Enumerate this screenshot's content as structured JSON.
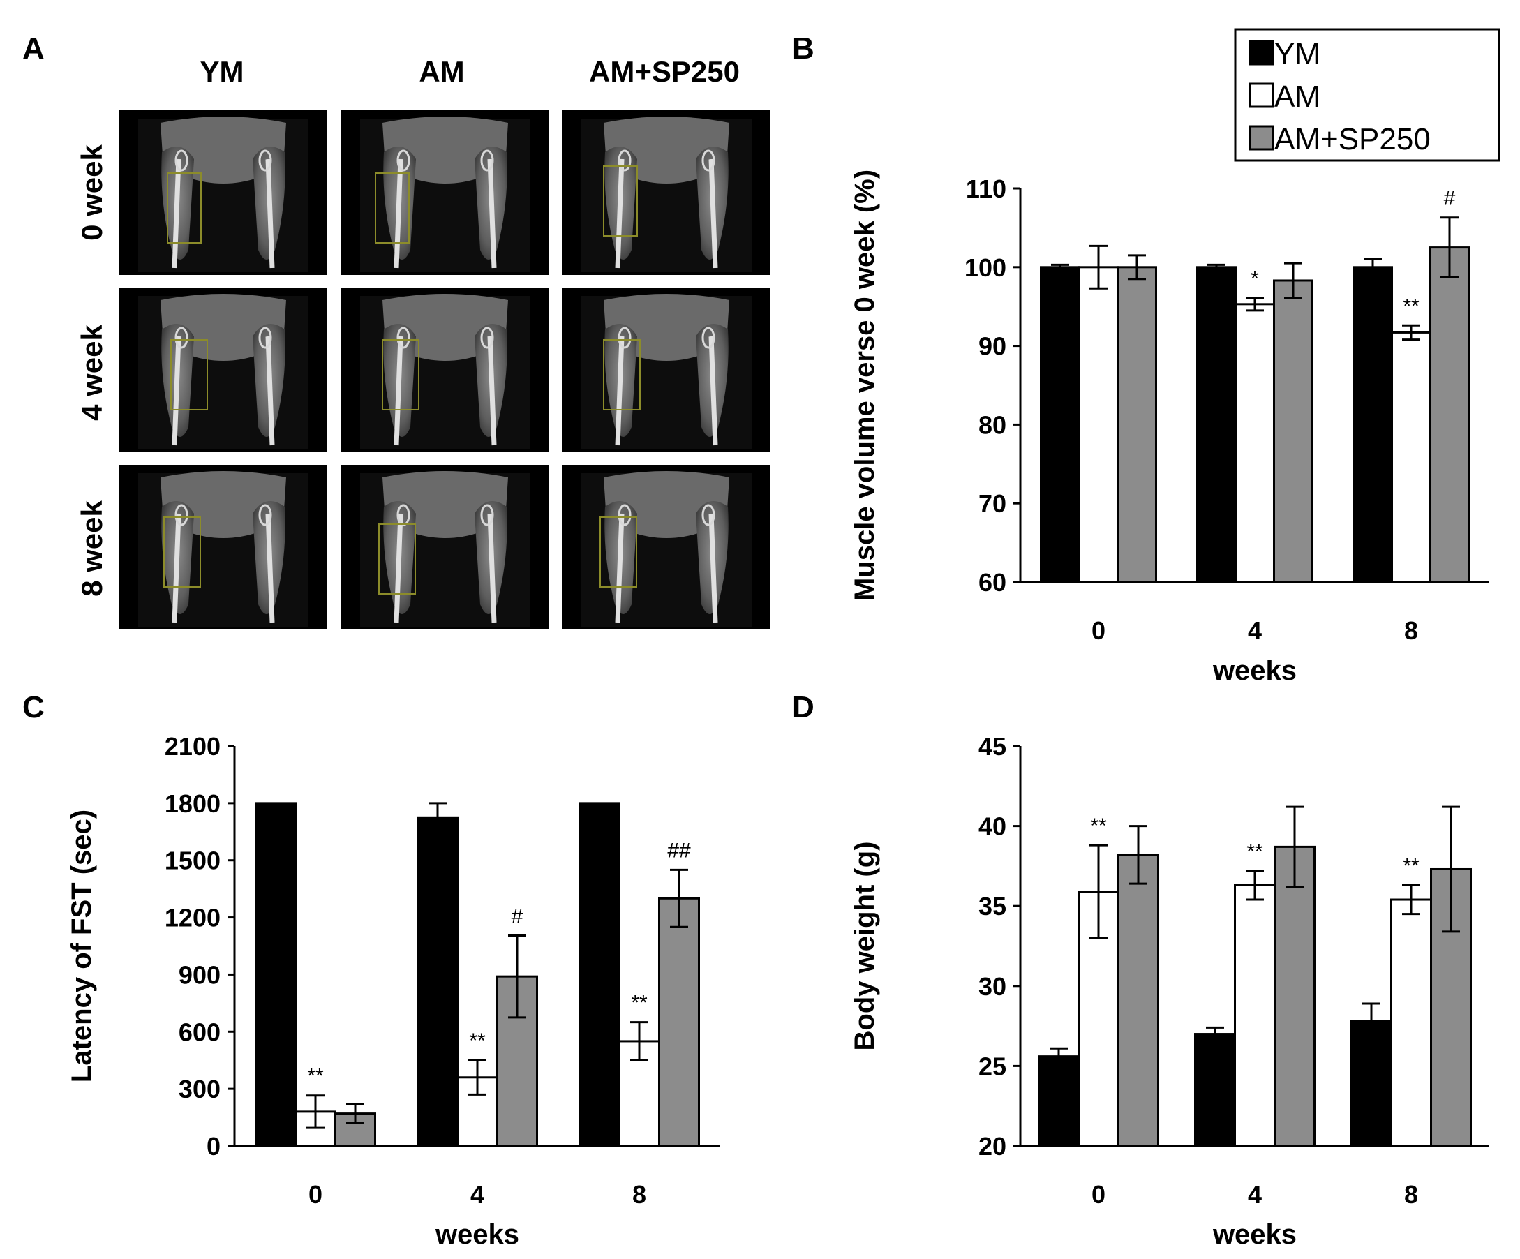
{
  "panel_A": {
    "label": "A",
    "columns": [
      "YM",
      "AM",
      "AM+SP250"
    ],
    "rows": [
      "0 week",
      "4 week",
      "8 week"
    ]
  },
  "legend": {
    "position": "top-right",
    "items": [
      {
        "name": "YM",
        "color": "#000000"
      },
      {
        "name": "AM",
        "color": "#ffffff"
      },
      {
        "name": "AM+SP250",
        "color": "#8c8c8c"
      }
    ]
  },
  "chart_data": [
    {
      "panel": "B",
      "type": "bar",
      "title": "",
      "xlabel": "weeks",
      "ylabel": "Muscle volume  verse 0 week (%)",
      "categories": [
        "0",
        "4",
        "8"
      ],
      "ylim": [
        60,
        110
      ],
      "yticks": [
        60,
        70,
        80,
        90,
        100,
        110
      ],
      "series": [
        {
          "name": "YM",
          "color": "#000000",
          "values": [
            100,
            100,
            100
          ],
          "errors": [
            0.3,
            0.3,
            1.0
          ]
        },
        {
          "name": "AM",
          "color": "#ffffff",
          "values": [
            100,
            95.3,
            91.7
          ],
          "errors": [
            2.7,
            0.8,
            0.9
          ]
        },
        {
          "name": "AM+SP250",
          "color": "#8c8c8c",
          "values": [
            100,
            98.3,
            102.5
          ],
          "errors": [
            1.5,
            2.2,
            3.8
          ]
        }
      ],
      "annotations": [
        {
          "text": "*",
          "category": 1,
          "series": 1
        },
        {
          "text": "**",
          "category": 2,
          "series": 1
        },
        {
          "text": "#",
          "category": 2,
          "series": 2
        }
      ]
    },
    {
      "panel": "C",
      "type": "bar",
      "title": "",
      "xlabel": "weeks",
      "ylabel": "Latency of FST (sec)",
      "categories": [
        "0",
        "4",
        "8"
      ],
      "ylim": [
        0,
        2100
      ],
      "yticks": [
        0,
        300,
        600,
        900,
        1200,
        1500,
        1800,
        2100
      ],
      "series": [
        {
          "name": "YM",
          "color": "#000000",
          "values": [
            1800,
            1725,
            1800
          ],
          "errors": [
            0,
            75,
            0
          ]
        },
        {
          "name": "AM",
          "color": "#ffffff",
          "values": [
            180,
            360,
            550
          ],
          "errors": [
            85,
            90,
            100
          ]
        },
        {
          "name": "AM+SP250",
          "color": "#8c8c8c",
          "values": [
            170,
            890,
            1300
          ],
          "errors": [
            50,
            215,
            150
          ]
        }
      ],
      "annotations": [
        {
          "text": "**",
          "category": 0,
          "series": 1
        },
        {
          "text": "**",
          "category": 1,
          "series": 1
        },
        {
          "text": "**",
          "category": 2,
          "series": 1
        },
        {
          "text": "#",
          "category": 1,
          "series": 2
        },
        {
          "text": "##",
          "category": 2,
          "series": 2
        }
      ]
    },
    {
      "panel": "D",
      "type": "bar",
      "title": "",
      "xlabel": "weeks",
      "ylabel": "Body weight (g)",
      "categories": [
        "0",
        "4",
        "8"
      ],
      "ylim": [
        20,
        45
      ],
      "yticks": [
        20,
        25,
        30,
        35,
        40,
        45
      ],
      "series": [
        {
          "name": "YM",
          "color": "#000000",
          "values": [
            25.6,
            27.0,
            27.8
          ],
          "errors": [
            0.5,
            0.4,
            1.1
          ]
        },
        {
          "name": "AM",
          "color": "#ffffff",
          "values": [
            35.9,
            36.3,
            35.4
          ],
          "errors": [
            2.9,
            0.9,
            0.9
          ]
        },
        {
          "name": "AM+SP250",
          "color": "#8c8c8c",
          "values": [
            38.2,
            38.7,
            37.3
          ],
          "errors": [
            1.8,
            2.5,
            3.9
          ]
        }
      ],
      "annotations": [
        {
          "text": "**",
          "category": 0,
          "series": 1
        },
        {
          "text": "**",
          "category": 1,
          "series": 1
        },
        {
          "text": "**",
          "category": 2,
          "series": 1
        }
      ]
    }
  ]
}
